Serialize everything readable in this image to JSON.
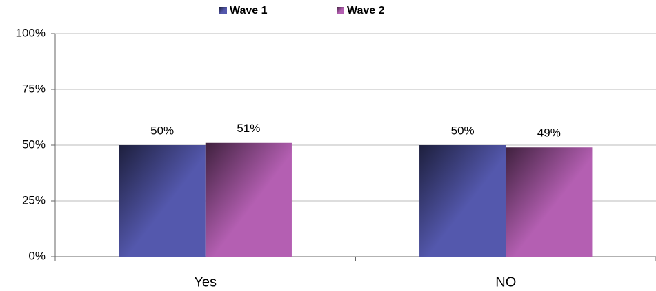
{
  "chart_data": {
    "type": "bar",
    "categories": [
      "Yes",
      "NO"
    ],
    "series": [
      {
        "name": "Wave 1",
        "color": "#5458ad",
        "values": [
          50,
          50
        ],
        "value_labels": [
          "50%",
          "50%"
        ]
      },
      {
        "name": "Wave 2",
        "color": "#b45fb2",
        "values": [
          51,
          49
        ],
        "value_labels": [
          "51%",
          "49%"
        ]
      }
    ],
    "ylim": [
      0,
      100
    ],
    "yticks": [
      {
        "value": 0,
        "label": "0%"
      },
      {
        "value": 25,
        "label": "25%"
      },
      {
        "value": 50,
        "label": "50%"
      },
      {
        "value": 75,
        "label": "75%"
      },
      {
        "value": 100,
        "label": "100%"
      }
    ],
    "grid": true,
    "legend": "top"
  }
}
